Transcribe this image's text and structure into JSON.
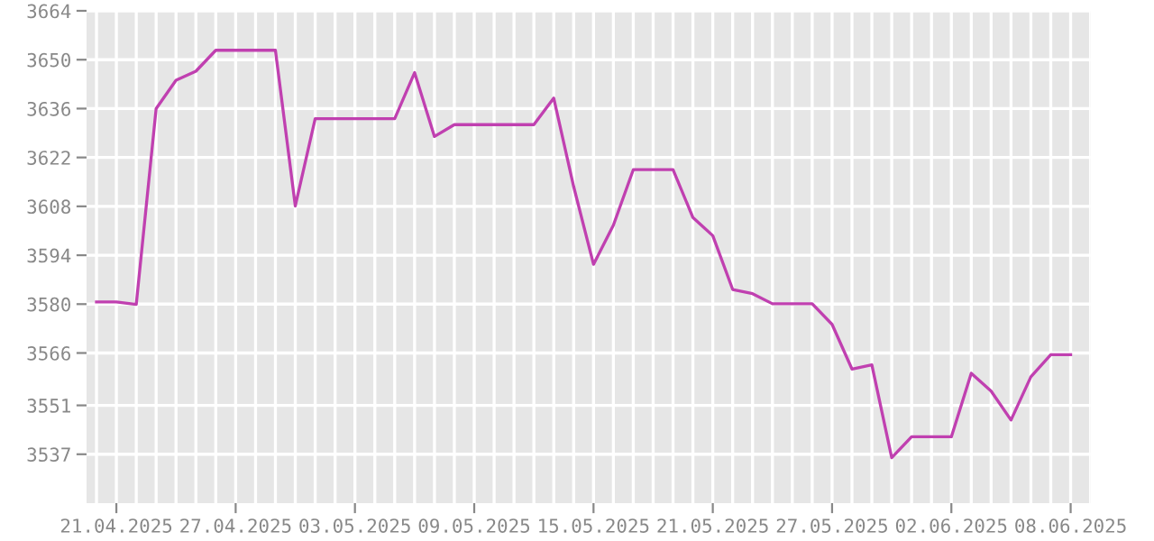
{
  "chart_data": {
    "type": "line",
    "color": "#c040b0",
    "grid": true,
    "marker": "none",
    "line_style": "solid",
    "x": [
      "2025-04-20",
      "2025-04-21",
      "2025-04-22",
      "2025-04-23",
      "2025-04-24",
      "2025-04-25",
      "2025-04-26",
      "2025-04-27",
      "2025-04-28",
      "2025-04-29",
      "2025-04-30",
      "2025-05-01",
      "2025-05-02",
      "2025-05-03",
      "2025-05-04",
      "2025-05-05",
      "2025-05-06",
      "2025-05-07",
      "2025-05-08",
      "2025-05-09",
      "2025-05-10",
      "2025-05-11",
      "2025-05-12",
      "2025-05-13",
      "2025-05-14",
      "2025-05-15",
      "2025-05-16",
      "2025-05-17",
      "2025-05-18",
      "2025-05-19",
      "2025-05-20",
      "2025-05-21",
      "2025-05-22",
      "2025-05-23",
      "2025-05-24",
      "2025-05-25",
      "2025-05-26",
      "2025-05-27",
      "2025-05-28",
      "2025-05-29",
      "2025-05-30",
      "2025-05-31",
      "2025-06-01",
      "2025-06-02",
      "2025-06-03",
      "2025-06-04",
      "2025-06-05",
      "2025-06-06",
      "2025-06-07",
      "2025-06-08"
    ],
    "values": [
      3580.6,
      3580.6,
      3579.9,
      3636.0,
      3644.1,
      3646.7,
      3652.7,
      3652.7,
      3652.7,
      3652.7,
      3608.1,
      3633.1,
      3633.1,
      3633.1,
      3633.1,
      3633.1,
      3646.3,
      3628.0,
      3631.4,
      3631.4,
      3631.4,
      3631.4,
      3631.4,
      3639.0,
      3613.7,
      3591.4,
      3602.6,
      3618.5,
      3618.5,
      3618.5,
      3604.8,
      3599.6,
      3584.2,
      3583.0,
      3580.1,
      3580.1,
      3580.1,
      3574.2,
      3561.4,
      3562.6,
      3536.0,
      3542.0,
      3542.0,
      3542.0,
      3560.2,
      3555.1,
      3546.8,
      3559.2,
      3565.5,
      3565.5
    ],
    "xlim": [
      "2025-04-19T12:00",
      "2025-06-09"
    ],
    "xticks": [
      {
        "value": "2025-04-21",
        "label": "21.04.2025"
      },
      {
        "value": "2025-04-27",
        "label": "27.04.2025"
      },
      {
        "value": "2025-05-03",
        "label": "03.05.2025"
      },
      {
        "value": "2025-05-09",
        "label": "09.05.2025"
      },
      {
        "value": "2025-05-15",
        "label": "15.05.2025"
      },
      {
        "value": "2025-05-21",
        "label": "21.05.2025"
      },
      {
        "value": "2025-05-27",
        "label": "27.05.2025"
      },
      {
        "value": "2025-06-02",
        "label": "02.06.2025"
      },
      {
        "value": "2025-06-08",
        "label": "08.06.2025"
      }
    ],
    "ylim": [
      3523,
      3664
    ],
    "yticks": [
      3537,
      3551,
      3566,
      3580,
      3594,
      3608,
      3622,
      3636,
      3650,
      3664
    ]
  }
}
